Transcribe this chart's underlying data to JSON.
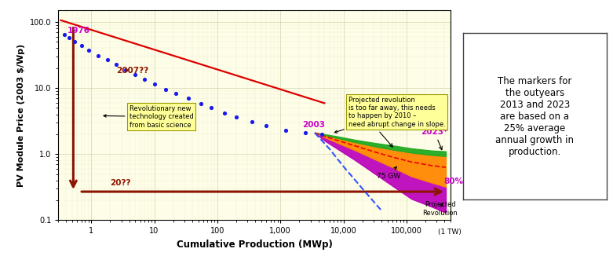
{
  "bg_color": "#fefee8",
  "ylabel": "PV Module Price (2003 $/Wp)",
  "xlabel": "Cumulative Production (MWp)",
  "xlim": [
    0.3,
    500000
  ],
  "ylim": [
    0.1,
    150
  ],
  "xticks": [
    1,
    10,
    100,
    1000,
    10000,
    100000
  ],
  "xticklabels": [
    "1",
    "10",
    "100",
    "1,000",
    "10,000",
    "100,000"
  ],
  "yticks": [
    0.1,
    1.0,
    10.0,
    100.0
  ],
  "yticklabels": [
    "0.1",
    "1.0",
    "10.0",
    "100.0"
  ],
  "blue_dots_x": [
    0.38,
    0.45,
    0.55,
    0.7,
    0.9,
    1.3,
    1.8,
    2.5,
    3.5,
    5.0,
    7.0,
    10.0,
    15.0,
    22.0,
    35.0,
    55.0,
    80.0,
    130.0,
    200.0,
    350.0,
    600.0,
    1200.0,
    2500.0,
    4500.0
  ],
  "blue_dots_y": [
    65,
    58,
    50,
    44,
    37,
    31,
    27,
    23,
    19,
    16,
    13.5,
    11.5,
    9.5,
    8.2,
    7.0,
    5.8,
    5.0,
    4.2,
    3.6,
    3.1,
    2.7,
    2.3,
    2.1,
    2.0
  ],
  "trend_x_start": 0.33,
  "trend_x_end": 5000,
  "trend_slope": -0.3,
  "trend_intercept_log": 1.88,
  "green_fan_x": [
    3500,
    5000,
    8000,
    15000,
    30000,
    60000,
    120000,
    250000,
    420000
  ],
  "green_top_y": [
    2.1,
    2.0,
    1.85,
    1.65,
    1.48,
    1.35,
    1.22,
    1.13,
    1.1
  ],
  "green_bot_y": [
    2.1,
    1.95,
    1.75,
    1.52,
    1.32,
    1.17,
    1.05,
    0.97,
    0.93
  ],
  "orange_bot_y": [
    2.1,
    1.8,
    1.48,
    1.15,
    0.85,
    0.63,
    0.46,
    0.37,
    0.32
  ],
  "purple_bot_y": [
    2.1,
    1.6,
    1.2,
    0.82,
    0.52,
    0.33,
    0.21,
    0.16,
    0.13
  ],
  "dashed_blue_x": [
    3500,
    6000,
    10000,
    20000,
    40000
  ],
  "dashed_blue_y": [
    2.1,
    1.2,
    0.65,
    0.3,
    0.14
  ],
  "red_dashed_x": [
    3500,
    5000,
    8000,
    15000,
    30000,
    60000,
    120000,
    250000,
    420000
  ],
  "red_dashed_y": [
    2.1,
    1.87,
    1.61,
    1.34,
    1.09,
    0.9,
    0.76,
    0.67,
    0.63
  ],
  "colors": {
    "red_line": "#dd0000",
    "blue_dots": "#1a1aee",
    "dashed_blue": "#3355ff",
    "green_band": "#22aa22",
    "orange_band": "#ff8800",
    "purple_band": "#bb00bb",
    "red_dashed": "#ee0000",
    "dark_red": "#8b1500",
    "magenta": "#cc00cc",
    "anno_box_bg": "#ffff99",
    "anno_box_edge": "#999900"
  },
  "sidebar_text": "The markers for\nthe outyears\n2013 and 2023\nare based on a\n25% average\nannual growth in\nproduction.",
  "callout1_text": "Projected revolution\nis too far away, this needs\nto happen by 2010 –\nneed abrupt change in slope.",
  "callout2_text": "Revolutionary new\ntechnology created\nfrom basic science"
}
